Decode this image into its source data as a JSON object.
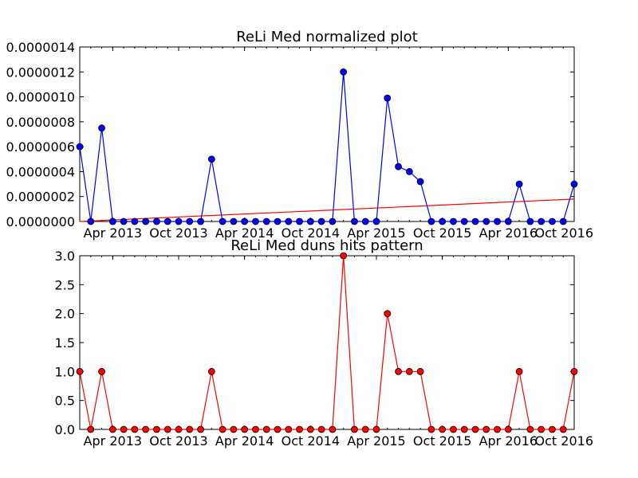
{
  "chart_data": [
    {
      "type": "line",
      "title": "ReLi Med normalized plot",
      "xlabel": "",
      "ylabel": "",
      "x_tick_labels": [
        "Apr 2013",
        "Oct 2013",
        "Apr 2014",
        "Oct 2014",
        "Apr 2015",
        "Oct 2015",
        "Apr 2016",
        "Oct 2016"
      ],
      "y_tick_labels": [
        "0.0000000",
        "0.0000002",
        "0.0000004",
        "0.0000006",
        "0.0000008",
        "0.0000010",
        "0.0000012",
        "0.0000014"
      ],
      "ylim": [
        0,
        1.4e-06
      ],
      "x": [
        "2013-01",
        "2013-02",
        "2013-03",
        "2013-04",
        "2013-05",
        "2013-06",
        "2013-07",
        "2013-08",
        "2013-09",
        "2013-10",
        "2013-11",
        "2013-12",
        "2014-01",
        "2014-02",
        "2014-03",
        "2014-04",
        "2014-05",
        "2014-06",
        "2014-07",
        "2014-08",
        "2014-09",
        "2014-10",
        "2014-11",
        "2014-12",
        "2015-01",
        "2015-02",
        "2015-03",
        "2015-04",
        "2015-05",
        "2015-06",
        "2015-07",
        "2015-08",
        "2015-09",
        "2015-10",
        "2015-11",
        "2015-12",
        "2016-01",
        "2016-02",
        "2016-03",
        "2016-04",
        "2016-05",
        "2016-06",
        "2016-07",
        "2016-08",
        "2016-09",
        "2016-10"
      ],
      "series": [
        {
          "color": "#0000ff",
          "marker": "circle",
          "values": [
            6e-07,
            0,
            7.5e-07,
            0,
            0,
            0,
            0,
            0,
            0,
            0,
            0,
            0,
            5e-07,
            0,
            0,
            0,
            0,
            0,
            0,
            0,
            0,
            0,
            0,
            0,
            1.2e-06,
            0,
            0,
            0,
            9.9e-07,
            4.4e-07,
            4e-07,
            3.2e-07,
            0,
            0,
            0,
            0,
            0,
            0,
            0,
            0,
            3e-07,
            0,
            0,
            0,
            0,
            3e-07
          ]
        }
      ],
      "trend_line": {
        "color": "#ff0000",
        "start": 0.0,
        "end": 1.8e-07
      }
    },
    {
      "type": "line",
      "title": "ReLi Med duns hits pattern",
      "xlabel": "",
      "ylabel": "",
      "x_tick_labels": [
        "Apr 2013",
        "Oct 2013",
        "Apr 2014",
        "Oct 2014",
        "Apr 2015",
        "Oct 2015",
        "Apr 2016",
        "Oct 2016"
      ],
      "y_tick_labels": [
        "0.0",
        "0.5",
        "1.0",
        "1.5",
        "2.0",
        "2.5",
        "3.0"
      ],
      "ylim": [
        0,
        3
      ],
      "x": [
        "2013-01",
        "2013-02",
        "2013-03",
        "2013-04",
        "2013-05",
        "2013-06",
        "2013-07",
        "2013-08",
        "2013-09",
        "2013-10",
        "2013-11",
        "2013-12",
        "2014-01",
        "2014-02",
        "2014-03",
        "2014-04",
        "2014-05",
        "2014-06",
        "2014-07",
        "2014-08",
        "2014-09",
        "2014-10",
        "2014-11",
        "2014-12",
        "2015-01",
        "2015-02",
        "2015-03",
        "2015-04",
        "2015-05",
        "2015-06",
        "2015-07",
        "2015-08",
        "2015-09",
        "2015-10",
        "2015-11",
        "2015-12",
        "2016-01",
        "2016-02",
        "2016-03",
        "2016-04",
        "2016-05",
        "2016-06",
        "2016-07",
        "2016-08",
        "2016-09",
        "2016-10"
      ],
      "series": [
        {
          "color": "#ff0000",
          "marker": "circle",
          "values": [
            1,
            0,
            1,
            0,
            0,
            0,
            0,
            0,
            0,
            0,
            0,
            0,
            1,
            0,
            0,
            0,
            0,
            0,
            0,
            0,
            0,
            0,
            0,
            0,
            3,
            0,
            0,
            0,
            2,
            1,
            1,
            1,
            0,
            0,
            0,
            0,
            0,
            0,
            0,
            0,
            1,
            0,
            0,
            0,
            0,
            1
          ]
        }
      ]
    }
  ]
}
